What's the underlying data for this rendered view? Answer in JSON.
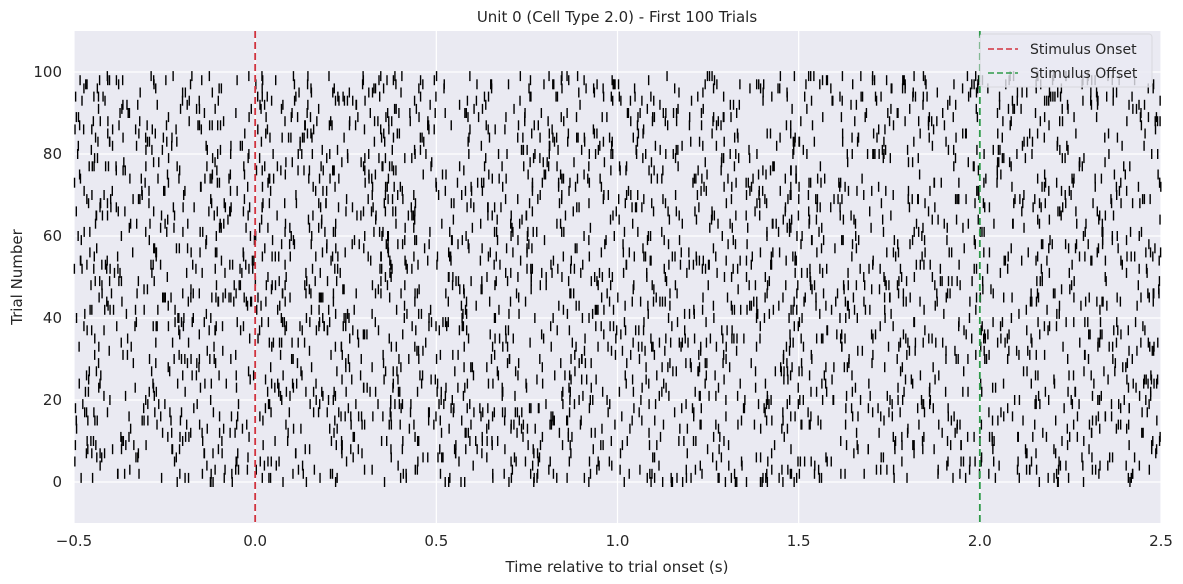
{
  "chart_data": {
    "type": "scatter",
    "title": "Unit 0 (Cell Type 2.0) - First 100 Trials",
    "xlabel": "Time relative to trial onset (s)",
    "ylabel": "Trial Number",
    "xlim": [
      -0.5,
      2.5
    ],
    "ylim": [
      -10,
      110
    ],
    "xticks": [
      "−0.5",
      "0.0",
      "0.5",
      "1.0",
      "1.5",
      "2.0",
      "2.5"
    ],
    "yticks": [
      "0",
      "20",
      "40",
      "60",
      "80",
      "100"
    ],
    "grid": true,
    "background": "#eaeaf2",
    "raster": {
      "trials": [
        0,
        99
      ],
      "marker": "|",
      "color": "#000000",
      "approx_rate_hz": 12,
      "note_trials": "one row of spike tick marks per trial, trial number on y"
    },
    "reference_lines": [
      {
        "name": "Stimulus Onset",
        "x": 0.0,
        "color": "#d1333e",
        "style": "dashed"
      },
      {
        "name": "Stimulus Offset",
        "x": 2.0,
        "color": "#2e9a4a",
        "style": "dashed"
      }
    ],
    "legend": {
      "position": "top-right",
      "entries": [
        "Stimulus Onset",
        "Stimulus Offset"
      ]
    }
  }
}
